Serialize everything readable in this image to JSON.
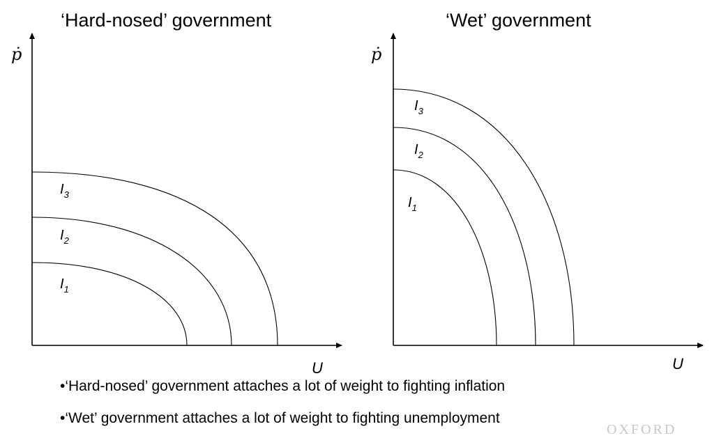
{
  "titles": {
    "left": "‘Hard-nosed’ government",
    "right": "‘Wet’ government"
  },
  "axes": {
    "y_label": "ṗ",
    "x_label": "U"
  },
  "curves": {
    "left": [
      {
        "letter": "I",
        "sub": "3"
      },
      {
        "letter": "I",
        "sub": "2"
      },
      {
        "letter": "I",
        "sub": "1"
      }
    ],
    "right": [
      {
        "letter": "I",
        "sub": "3"
      },
      {
        "letter": "I",
        "sub": "2"
      },
      {
        "letter": "I",
        "sub": "1"
      }
    ]
  },
  "bullets": [
    "•‘Hard-nosed’ government attaches a lot of weight to fighting inflation",
    "•‘Wet’ government attaches a lot of weight to fighting unemployment"
  ],
  "watermark": "OXFORD"
}
